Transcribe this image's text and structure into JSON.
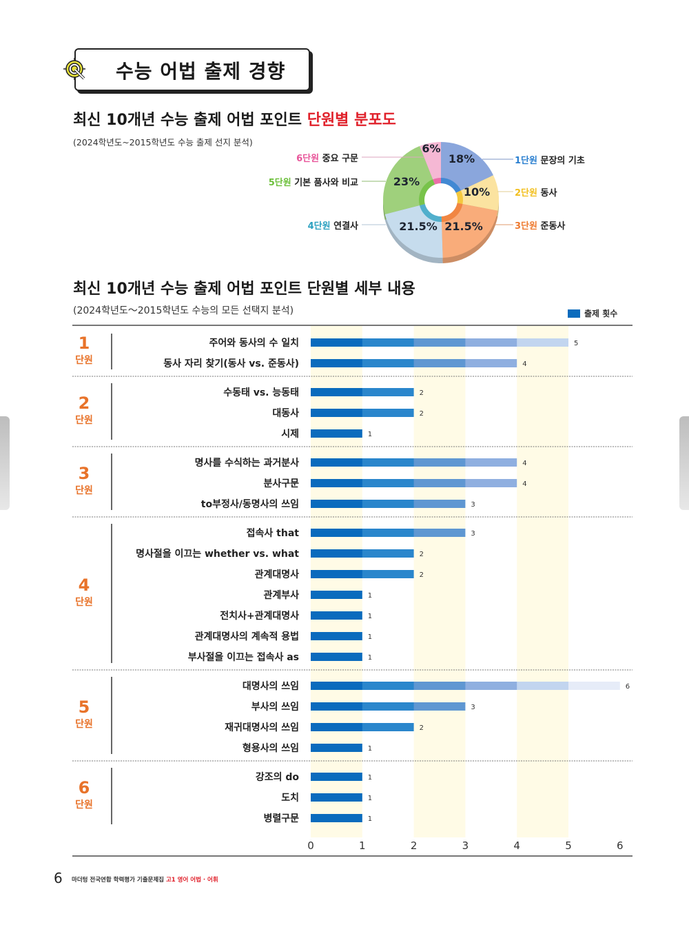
{
  "header": {
    "title": "수능 어법 출제 경향",
    "icon": "target-icon"
  },
  "section1": {
    "title_main": "최신 10개년 수능 출제 어법 포인트 ",
    "title_highlight": "단원별 분포도",
    "subtitle": "(2024학년도~2015학년도 수능 출제 선지 분석)"
  },
  "section2": {
    "title": "최신 10개년 수능 출제 어법 포인트 단원별 세부 내용",
    "subtitle": "(2024학년도～2015학년도 수능의 모든 선택지 분석)",
    "legend_label": "출제 횟수"
  },
  "chart_data": [
    {
      "type": "pie",
      "title": "최신 10개년 수능 출제 어법 포인트 단원별 분포도",
      "slices": [
        {
          "unit": "1단원",
          "name": "문장의 기초",
          "value": 18,
          "label": "18%",
          "color": "#8aa6dc",
          "unit_color": "#2a7fd0"
        },
        {
          "unit": "2단원",
          "name": "동사",
          "value": 10,
          "label": "10%",
          "color": "#fbe3a0",
          "unit_color": "#f2bf1e"
        },
        {
          "unit": "3단원",
          "name": "준동사",
          "value": 21.5,
          "label": "21.5%",
          "color": "#f9ac7a",
          "unit_color": "#ee7a30"
        },
        {
          "unit": "4단원",
          "name": "연결사",
          "value": 21.5,
          "label": "21.5%",
          "color": "#c6dced",
          "unit_color": "#2aa0c0"
        },
        {
          "unit": "5단원",
          "name": "기본 품사와 비교",
          "value": 23,
          "label": "23%",
          "color": "#9fd07c",
          "unit_color": "#6bbf3a"
        },
        {
          "unit": "6단원",
          "name": "중요 구문",
          "value": 6,
          "label": "6%",
          "color": "#f5b8d4",
          "unit_color": "#e8559a"
        }
      ]
    },
    {
      "type": "bar",
      "orientation": "horizontal",
      "title": "최신 10개년 수능 출제 어법 포인트 단원별 세부 내용",
      "xlabel": "",
      "ylabel": "",
      "xlim": [
        0,
        6
      ],
      "x_ticks": [
        "0",
        "1",
        "2",
        "3",
        "4",
        "5",
        "6"
      ],
      "legend": {
        "label": "출제 횟수",
        "position": "top-right"
      },
      "series_name": "출제 횟수",
      "bar_color": "#0a6bbd",
      "groups": [
        {
          "unit_number": "1",
          "unit_word": "단원",
          "items": [
            {
              "label": "주어와 동사의 수 일치",
              "value": 5
            },
            {
              "label": "동사 자리 찾기(동사 vs. 준동사)",
              "value": 4
            }
          ]
        },
        {
          "unit_number": "2",
          "unit_word": "단원",
          "items": [
            {
              "label": "수동태 vs. 능동태",
              "value": 2
            },
            {
              "label": "대동사",
              "value": 2
            },
            {
              "label": "시제",
              "value": 1
            }
          ]
        },
        {
          "unit_number": "3",
          "unit_word": "단원",
          "items": [
            {
              "label": "명사를 수식하는 과거분사",
              "value": 4
            },
            {
              "label": "분사구문",
              "value": 4
            },
            {
              "label": "to부정사/동명사의 쓰임",
              "value": 3
            }
          ]
        },
        {
          "unit_number": "4",
          "unit_word": "단원",
          "items": [
            {
              "label": "접속사 that",
              "value": 3
            },
            {
              "label": "명사절을 이끄는 whether vs. what",
              "value": 2
            },
            {
              "label": "관계대명사",
              "value": 2
            },
            {
              "label": "관계부사",
              "value": 1
            },
            {
              "label": "전치사+관계대명사",
              "value": 1
            },
            {
              "label": "관계대명사의 계속적 용법",
              "value": 1
            },
            {
              "label": "부사절을 이끄는 접속사 as",
              "value": 1
            }
          ]
        },
        {
          "unit_number": "5",
          "unit_word": "단원",
          "items": [
            {
              "label": "대명사의 쓰임",
              "value": 6
            },
            {
              "label": "부사의 쓰임",
              "value": 3
            },
            {
              "label": "재귀대명사의 쓰임",
              "value": 2
            },
            {
              "label": "형용사의 쓰임",
              "value": 1
            }
          ]
        },
        {
          "unit_number": "6",
          "unit_word": "단원",
          "items": [
            {
              "label": "강조의 do",
              "value": 1
            },
            {
              "label": "도치",
              "value": 1
            },
            {
              "label": "병렬구문",
              "value": 1
            }
          ]
        }
      ]
    }
  ],
  "footer": {
    "page_number": "6",
    "book_title": "마더텅 전국연합 학력평가 기출문제집 ",
    "book_subject": "고1 영어 어법 · 어휘"
  },
  "navigation": {
    "prev_page": "previous-page-tab",
    "next_page": "next-page-tab"
  }
}
